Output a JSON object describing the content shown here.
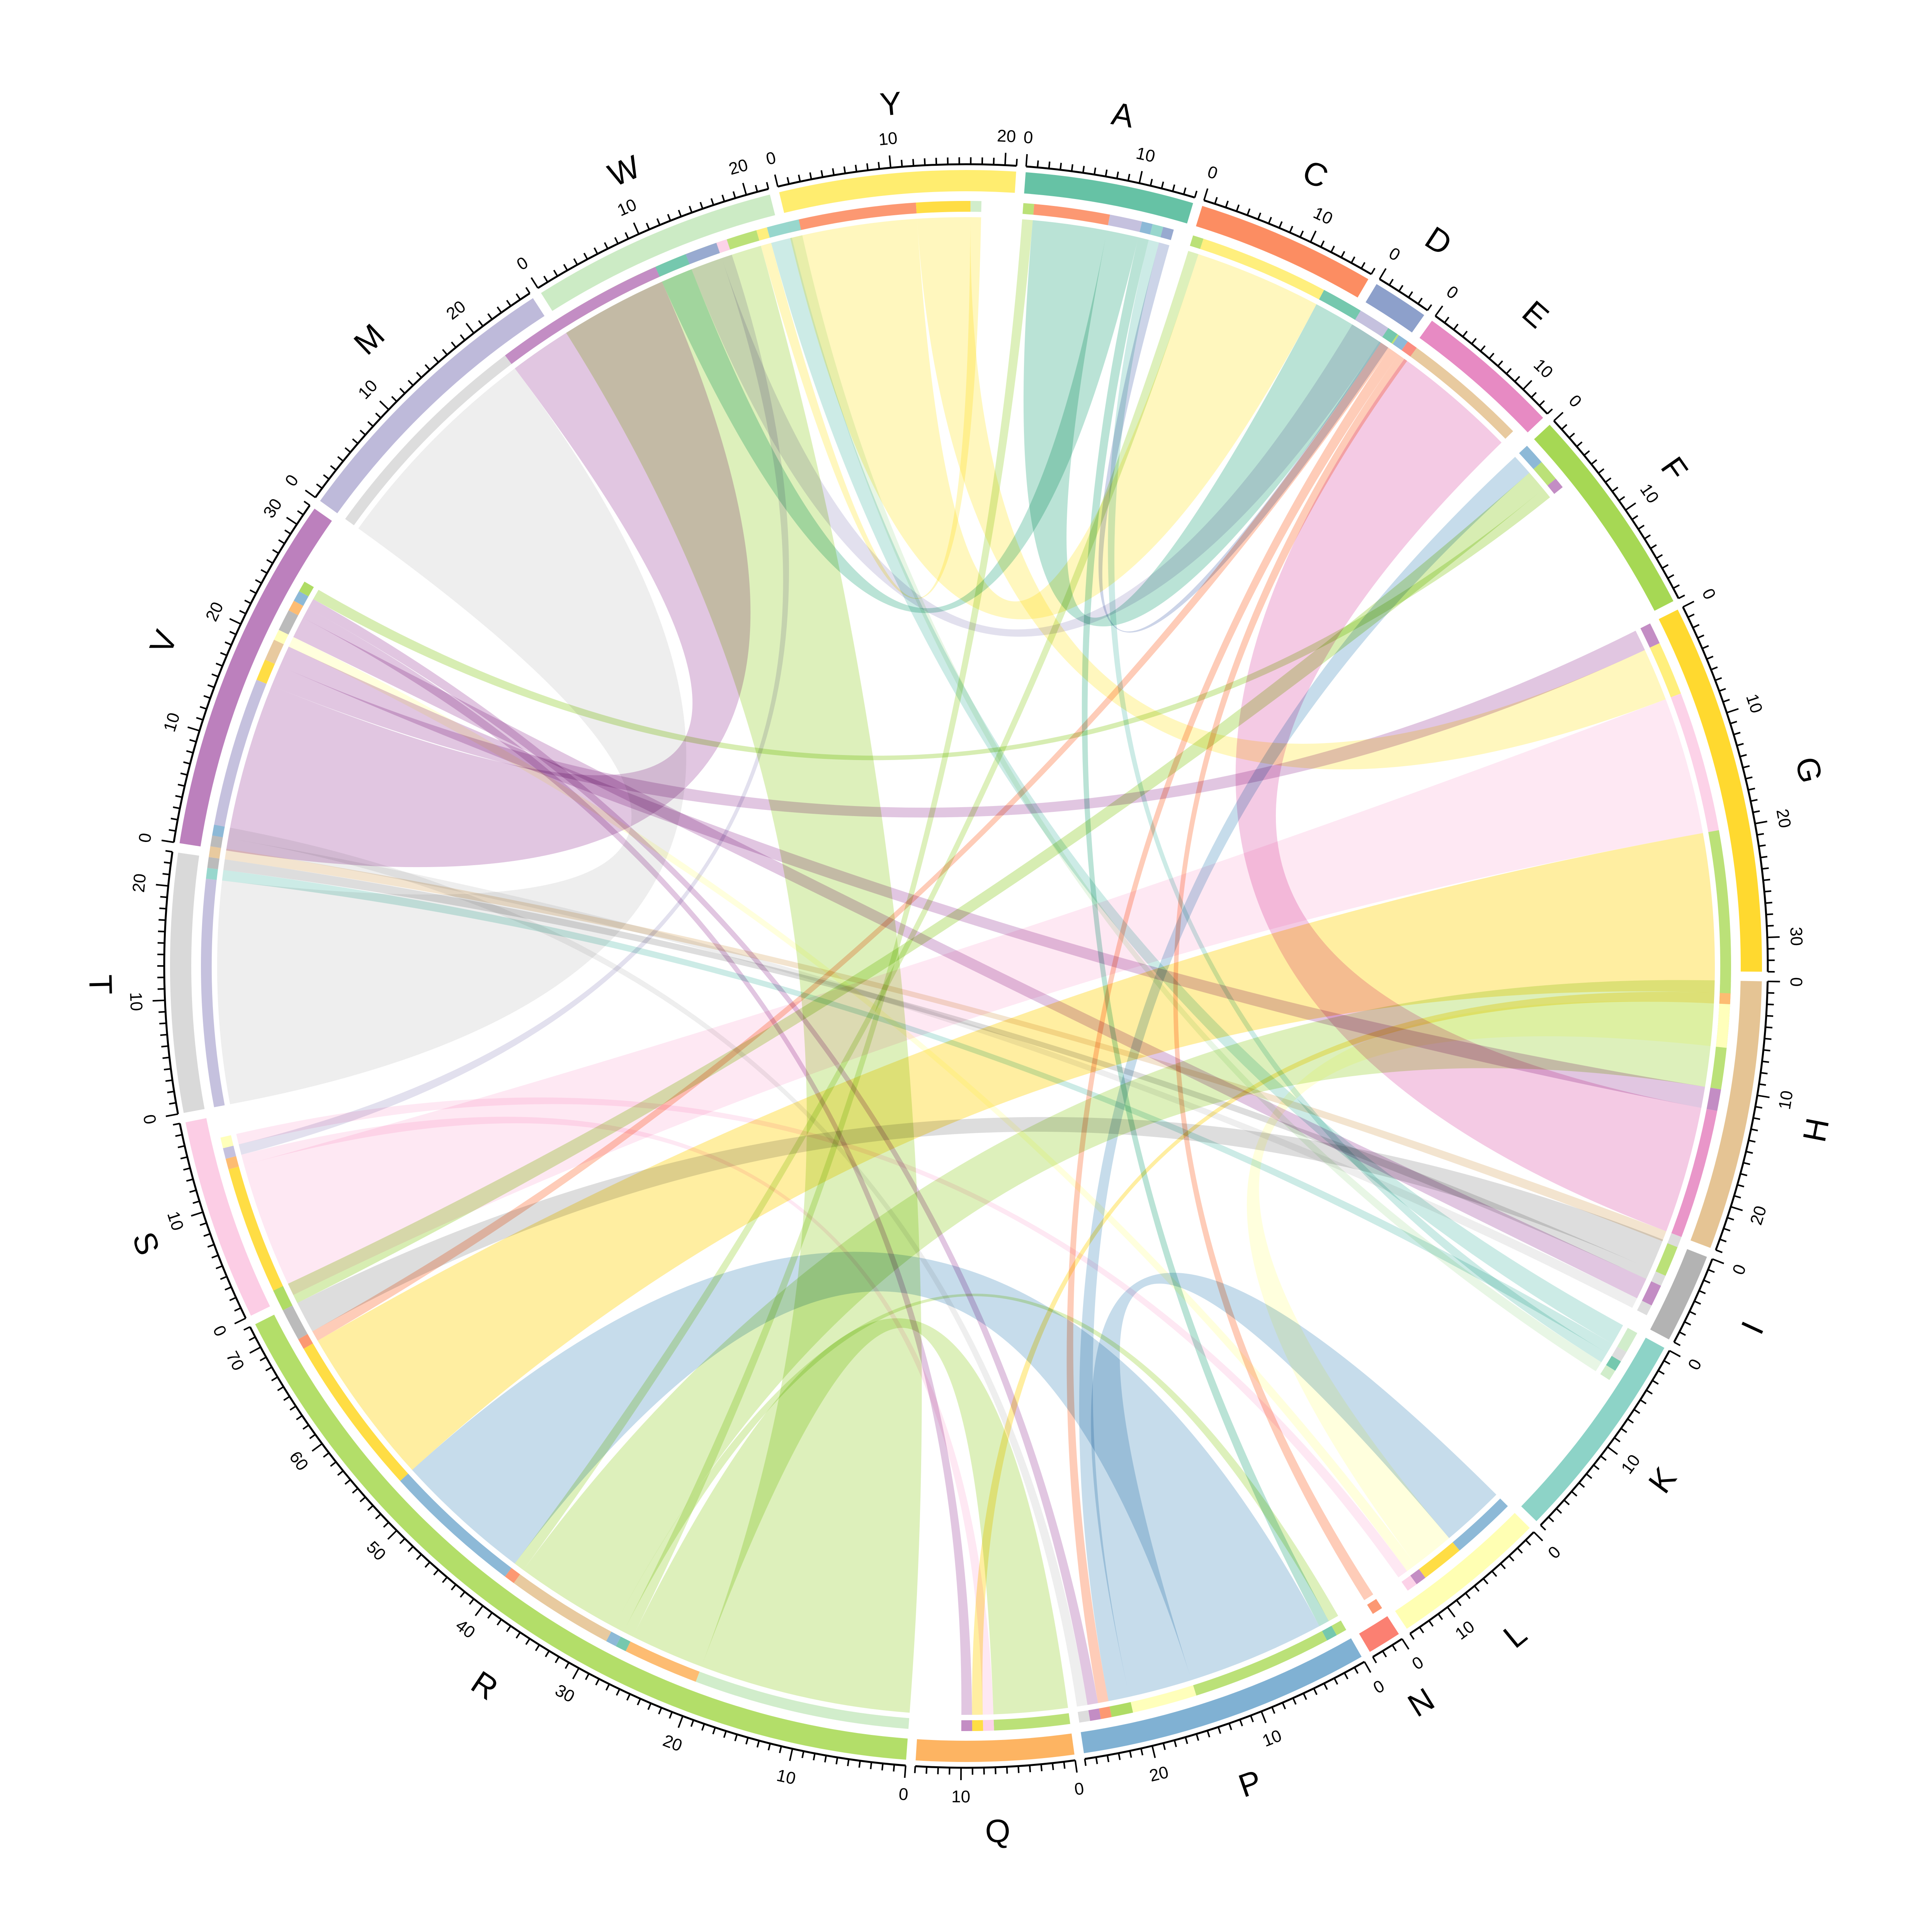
{
  "chart_data": {
    "type": "chord",
    "sectors": [
      {
        "name": "A",
        "total": 15,
        "color": "#66C2A5"
      },
      {
        "name": "C",
        "total": 16,
        "color": "#FC8D62"
      },
      {
        "name": "D",
        "total": 5,
        "color": "#8DA0CB"
      },
      {
        "name": "E",
        "total": 13,
        "color": "#E78AC3"
      },
      {
        "name": "F",
        "total": 19,
        "color": "#A6D854"
      },
      {
        "name": "G",
        "total": 33,
        "color": "#FFD92F"
      },
      {
        "name": "H",
        "total": 24,
        "color": "#E5C494"
      },
      {
        "name": "I",
        "total": 8,
        "color": "#B3B3B3"
      },
      {
        "name": "K",
        "total": 19,
        "color": "#8DD3C7"
      },
      {
        "name": "L",
        "total": 14,
        "color": "#FFFFB3"
      },
      {
        "name": "N",
        "total": 3,
        "color": "#FB8072"
      },
      {
        "name": "P",
        "total": 26,
        "color": "#80B1D3"
      },
      {
        "name": "Q",
        "total": 14,
        "color": "#FDB462"
      },
      {
        "name": "R",
        "total": 72,
        "color": "#B3DE69"
      },
      {
        "name": "S",
        "total": 18,
        "color": "#FCCDE5"
      },
      {
        "name": "T",
        "total": 23,
        "color": "#D9D9D9"
      },
      {
        "name": "V",
        "total": 32,
        "color": "#BC80BD"
      },
      {
        "name": "M",
        "total": 26,
        "color": "#BEBADA"
      },
      {
        "name": "W",
        "total": 22,
        "color": "#CCEBC5"
      },
      {
        "name": "Y",
        "total": 21,
        "color": "#FFED6F"
      }
    ],
    "links": [
      {
        "from": "R",
        "to": "W",
        "value": 20
      },
      {
        "from": "R",
        "to": "Q",
        "value": 7
      },
      {
        "from": "R",
        "to": "A",
        "value": 1
      },
      {
        "from": "R",
        "to": "P",
        "value": 1
      },
      {
        "from": "R",
        "to": "H",
        "value": 10
      },
      {
        "from": "R",
        "to": "C",
        "value": 1
      },
      {
        "from": "T",
        "to": "M",
        "value": 21
      },
      {
        "from": "V",
        "to": "M",
        "value": 16
      },
      {
        "from": "V",
        "to": "G",
        "value": 2
      },
      {
        "from": "V",
        "to": "H",
        "value": 2
      },
      {
        "from": "Y",
        "to": "C",
        "value": 12
      },
      {
        "from": "Y",
        "to": "G",
        "value": 5
      },
      {
        "from": "Y",
        "to": "W",
        "value": 1
      },
      {
        "from": "A",
        "to": "C",
        "value": 7
      },
      {
        "from": "A",
        "to": "M",
        "value": 3
      },
      {
        "from": "A",
        "to": "P",
        "value": 1
      },
      {
        "from": "E",
        "to": "H",
        "value": 12
      },
      {
        "from": "S",
        "to": "G",
        "value": 13
      },
      {
        "from": "S",
        "to": "Q",
        "value": 1
      },
      {
        "from": "P",
        "to": "R",
        "value": 13
      },
      {
        "from": "P",
        "to": "L",
        "value": 6
      },
      {
        "from": "P",
        "to": "F",
        "value": 2
      },
      {
        "from": "G",
        "to": "R",
        "value": 15
      },
      {
        "from": "G",
        "to": "Q",
        "value": 1
      },
      {
        "from": "M",
        "to": "D",
        "value": 3
      },
      {
        "from": "M",
        "to": "S",
        "value": 1
      },
      {
        "from": "C",
        "to": "R",
        "value": 1
      },
      {
        "from": "C",
        "to": "P",
        "value": 1
      },
      {
        "from": "C",
        "to": "N",
        "value": 1
      },
      {
        "from": "K",
        "to": "W",
        "value": 2
      },
      {
        "from": "K",
        "to": "T",
        "value": 1
      },
      {
        "from": "K",
        "to": "A",
        "value": 1
      },
      {
        "from": "I",
        "to": "R",
        "value": 3
      },
      {
        "from": "I",
        "to": "T",
        "value": 1
      },
      {
        "from": "L",
        "to": "G",
        "value": 4
      },
      {
        "from": "L",
        "to": "V",
        "value": 1
      },
      {
        "from": "V",
        "to": "I",
        "value": 2
      },
      {
        "from": "V",
        "to": "Q",
        "value": 1
      },
      {
        "from": "V",
        "to": "P",
        "value": 1
      },
      {
        "from": "D",
        "to": "A",
        "value": 1
      },
      {
        "from": "F",
        "to": "R",
        "value": 2
      },
      {
        "from": "F",
        "to": "V",
        "value": 1
      },
      {
        "from": "H",
        "to": "T",
        "value": 1
      },
      {
        "from": "W",
        "to": "K",
        "value": 1
      },
      {
        "from": "S",
        "to": "L",
        "value": 1
      },
      {
        "from": "T",
        "to": "I",
        "value": 1
      },
      {
        "from": "T",
        "to": "P",
        "value": 1
      }
    ]
  }
}
